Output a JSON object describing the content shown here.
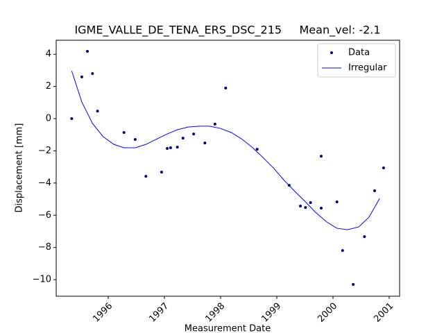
{
  "chart_data": {
    "type": "scatter",
    "title": "IGME_VALLE_DE_TENA_ERS_DSC_215     Mean_vel: -2.1",
    "x_label": "Measurement Date",
    "y_label": "Displacement [mm]",
    "xlim": [
      1995.074,
      2001.185
    ],
    "ylim": [
      -11.03,
      4.87
    ],
    "xticks": [
      1996,
      1997,
      1998,
      1999,
      2000,
      2001
    ],
    "yticks": [
      {
        "value": -10,
        "label": "−10"
      },
      {
        "value": -8,
        "label": "−8"
      },
      {
        "value": -6,
        "label": "−6"
      },
      {
        "value": -4,
        "label": "−4"
      },
      {
        "value": -2,
        "label": "−2"
      },
      0,
      2,
      4
    ],
    "legend": "upper right",
    "series": [
      {
        "name": "Data",
        "mode": "markers",
        "color": "#00007f",
        "x": [
          1995.35,
          1995.53,
          1995.63,
          1995.72,
          1995.81,
          1996.28,
          1996.48,
          1996.67,
          1996.95,
          1997.05,
          1997.11,
          1997.23,
          1997.33,
          1997.52,
          1997.72,
          1997.9,
          1998.09,
          1998.65,
          1999.22,
          1999.42,
          1999.51,
          1999.6,
          1999.79,
          1999.79,
          2000.07,
          2000.17,
          2000.36,
          2000.56,
          2000.74,
          2000.9
        ],
        "values": [
          0,
          2.59,
          4.18,
          2.8,
          0.47,
          -0.86,
          -1.29,
          -3.58,
          -3.32,
          -1.85,
          -1.81,
          -1.77,
          -1.21,
          -0.95,
          -1.51,
          -0.34,
          1.9,
          -1.9,
          -4.14,
          -5.43,
          -5.52,
          -5.22,
          -2.33,
          -5.56,
          -5.17,
          -8.19,
          -10.3,
          -7.33,
          -4.48,
          -3.06
        ]
      },
      {
        "name": "Irregular",
        "mode": "lines",
        "color": "#0000ff",
        "x": [
          1995.35,
          1995.53,
          1995.72,
          1995.91,
          1996.1,
          1996.28,
          1996.48,
          1996.67,
          1996.85,
          1997.05,
          1997.23,
          1997.42,
          1997.62,
          1997.8,
          1997.99,
          1998.19,
          1998.37,
          1998.56,
          1998.74,
          1998.94,
          1999.12,
          1999.31,
          1999.51,
          1999.69,
          1999.89,
          2000.07,
          2000.26,
          2000.46,
          2000.64,
          2000.83
        ],
        "values": [
          2.97,
          1.03,
          -0.3,
          -1.12,
          -1.6,
          -1.81,
          -1.81,
          -1.6,
          -1.29,
          -0.95,
          -0.69,
          -0.52,
          -0.47,
          -0.47,
          -0.6,
          -0.86,
          -1.25,
          -1.77,
          -2.37,
          -3.06,
          -3.79,
          -4.48,
          -5.17,
          -5.82,
          -6.42,
          -6.81,
          -6.9,
          -6.72,
          -6.12,
          -4.96
        ]
      }
    ]
  }
}
